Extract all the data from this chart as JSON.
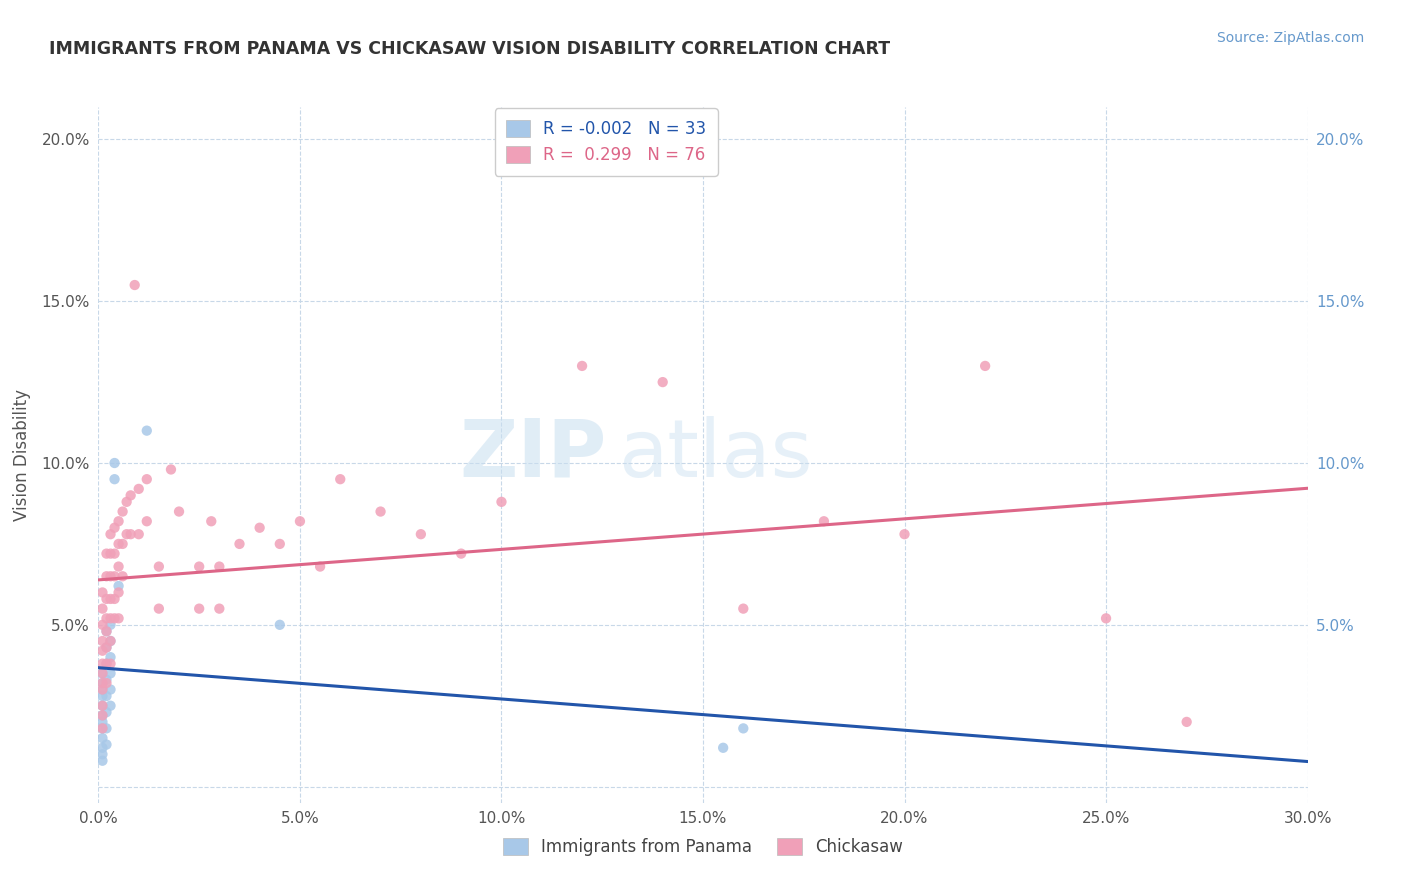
{
  "title": "IMMIGRANTS FROM PANAMA VS CHICKASAW VISION DISABILITY CORRELATION CHART",
  "source_text": "Source: ZipAtlas.com",
  "ylabel": "Vision Disability",
  "watermark_ZIP": "ZIP",
  "watermark_atlas": "atlas",
  "xlim": [
    0.0,
    0.3
  ],
  "ylim": [
    -0.005,
    0.21
  ],
  "xtick_vals": [
    0.0,
    0.05,
    0.1,
    0.15,
    0.2,
    0.25,
    0.3
  ],
  "xtick_labels": [
    "0.0%",
    "5.0%",
    "10.0%",
    "15.0%",
    "20.0%",
    "25.0%",
    "30.0%"
  ],
  "ytick_vals": [
    0.0,
    0.05,
    0.1,
    0.15,
    0.2
  ],
  "ytick_labels": [
    "",
    "5.0%",
    "10.0%",
    "15.0%",
    "20.0%"
  ],
  "right_ytick_vals": [
    0.05,
    0.1,
    0.15,
    0.2
  ],
  "right_ytick_labels": [
    "5.0%",
    "10.0%",
    "15.0%",
    "20.0%"
  ],
  "legend_blue_R": "-0.002",
  "legend_blue_N": "33",
  "legend_pink_R": "0.299",
  "legend_pink_N": "76",
  "blue_color": "#a8c8e8",
  "pink_color": "#f0a0b8",
  "trendline_blue_color": "#2255aa",
  "trendline_pink_color": "#dd6688",
  "background_color": "#ffffff",
  "grid_color": "#c8d8e8",
  "title_color": "#333333",
  "source_color": "#6699cc",
  "right_axis_color": "#6699cc",
  "blue_scatter": [
    [
      0.001,
      0.035
    ],
    [
      0.001,
      0.032
    ],
    [
      0.001,
      0.03
    ],
    [
      0.001,
      0.028
    ],
    [
      0.001,
      0.025
    ],
    [
      0.001,
      0.022
    ],
    [
      0.001,
      0.02
    ],
    [
      0.001,
      0.018
    ],
    [
      0.001,
      0.015
    ],
    [
      0.001,
      0.012
    ],
    [
      0.001,
      0.01
    ],
    [
      0.001,
      0.008
    ],
    [
      0.002,
      0.048
    ],
    [
      0.002,
      0.043
    ],
    [
      0.002,
      0.038
    ],
    [
      0.002,
      0.033
    ],
    [
      0.002,
      0.028
    ],
    [
      0.002,
      0.023
    ],
    [
      0.002,
      0.018
    ],
    [
      0.002,
      0.013
    ],
    [
      0.003,
      0.05
    ],
    [
      0.003,
      0.045
    ],
    [
      0.003,
      0.04
    ],
    [
      0.003,
      0.035
    ],
    [
      0.003,
      0.03
    ],
    [
      0.003,
      0.025
    ],
    [
      0.004,
      0.1
    ],
    [
      0.004,
      0.095
    ],
    [
      0.005,
      0.062
    ],
    [
      0.012,
      0.11
    ],
    [
      0.045,
      0.05
    ],
    [
      0.155,
      0.012
    ],
    [
      0.16,
      0.018
    ]
  ],
  "pink_scatter": [
    [
      0.001,
      0.06
    ],
    [
      0.001,
      0.055
    ],
    [
      0.001,
      0.05
    ],
    [
      0.001,
      0.045
    ],
    [
      0.001,
      0.042
    ],
    [
      0.001,
      0.038
    ],
    [
      0.001,
      0.035
    ],
    [
      0.001,
      0.032
    ],
    [
      0.001,
      0.03
    ],
    [
      0.001,
      0.025
    ],
    [
      0.001,
      0.022
    ],
    [
      0.001,
      0.018
    ],
    [
      0.002,
      0.072
    ],
    [
      0.002,
      0.065
    ],
    [
      0.002,
      0.058
    ],
    [
      0.002,
      0.052
    ],
    [
      0.002,
      0.048
    ],
    [
      0.002,
      0.043
    ],
    [
      0.002,
      0.038
    ],
    [
      0.002,
      0.032
    ],
    [
      0.003,
      0.078
    ],
    [
      0.003,
      0.072
    ],
    [
      0.003,
      0.065
    ],
    [
      0.003,
      0.058
    ],
    [
      0.003,
      0.052
    ],
    [
      0.003,
      0.045
    ],
    [
      0.003,
      0.038
    ],
    [
      0.004,
      0.08
    ],
    [
      0.004,
      0.072
    ],
    [
      0.004,
      0.065
    ],
    [
      0.004,
      0.058
    ],
    [
      0.004,
      0.052
    ],
    [
      0.005,
      0.082
    ],
    [
      0.005,
      0.075
    ],
    [
      0.005,
      0.068
    ],
    [
      0.005,
      0.06
    ],
    [
      0.005,
      0.052
    ],
    [
      0.006,
      0.085
    ],
    [
      0.006,
      0.075
    ],
    [
      0.006,
      0.065
    ],
    [
      0.007,
      0.088
    ],
    [
      0.007,
      0.078
    ],
    [
      0.008,
      0.09
    ],
    [
      0.008,
      0.078
    ],
    [
      0.009,
      0.155
    ],
    [
      0.01,
      0.092
    ],
    [
      0.01,
      0.078
    ],
    [
      0.012,
      0.095
    ],
    [
      0.012,
      0.082
    ],
    [
      0.015,
      0.068
    ],
    [
      0.015,
      0.055
    ],
    [
      0.018,
      0.098
    ],
    [
      0.02,
      0.085
    ],
    [
      0.025,
      0.068
    ],
    [
      0.025,
      0.055
    ],
    [
      0.028,
      0.082
    ],
    [
      0.03,
      0.068
    ],
    [
      0.03,
      0.055
    ],
    [
      0.035,
      0.075
    ],
    [
      0.04,
      0.08
    ],
    [
      0.045,
      0.075
    ],
    [
      0.05,
      0.082
    ],
    [
      0.055,
      0.068
    ],
    [
      0.06,
      0.095
    ],
    [
      0.07,
      0.085
    ],
    [
      0.08,
      0.078
    ],
    [
      0.09,
      0.072
    ],
    [
      0.1,
      0.088
    ],
    [
      0.12,
      0.13
    ],
    [
      0.14,
      0.125
    ],
    [
      0.16,
      0.055
    ],
    [
      0.18,
      0.082
    ],
    [
      0.2,
      0.078
    ],
    [
      0.22,
      0.13
    ],
    [
      0.25,
      0.052
    ],
    [
      0.27,
      0.02
    ]
  ]
}
